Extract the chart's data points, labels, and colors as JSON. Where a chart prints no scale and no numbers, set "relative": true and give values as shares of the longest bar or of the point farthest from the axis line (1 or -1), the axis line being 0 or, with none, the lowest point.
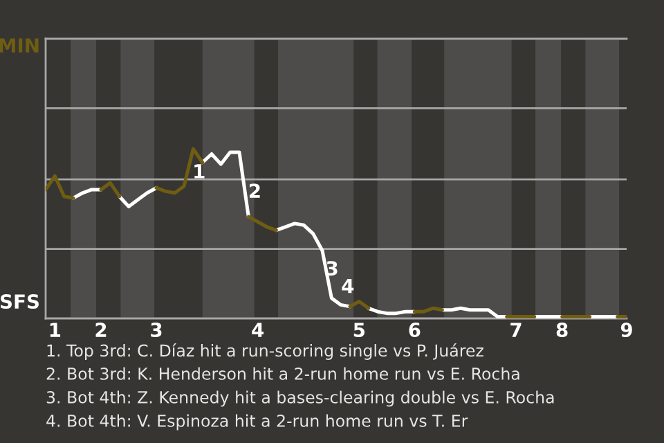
{
  "chart_data": {
    "type": "line",
    "relative": true,
    "tick_labels": "x",
    "legend": false,
    "marker": "none",
    "line_style": "solid",
    "categories": [
      null,
      "1",
      null,
      null,
      null,
      null,
      "2",
      null,
      null,
      null,
      null,
      null,
      "3",
      null,
      null,
      null,
      null,
      null,
      null,
      null,
      null,
      null,
      null,
      "4",
      null,
      null,
      null,
      null,
      null,
      null,
      null,
      null,
      null,
      null,
      "5",
      null,
      null,
      null,
      null,
      null,
      "6",
      null,
      null,
      null,
      null,
      null,
      null,
      null,
      null,
      null,
      null,
      "7",
      null,
      null,
      null,
      null,
      "8",
      null,
      null,
      null,
      null,
      null,
      null,
      "9"
    ],
    "series": [
      {
        "color": "#6f5d12",
        "values": [
          0.76,
          0.84,
          0.72,
          0.71,
          null,
          null,
          0.76,
          0.8,
          0.72,
          null,
          null,
          null,
          0.77,
          0.75,
          0.74,
          0.78,
          1.0,
          0.92,
          null,
          null,
          null,
          null,
          0.6,
          0.57,
          0.54,
          0.52,
          null,
          null,
          null,
          null,
          null,
          null,
          null,
          0.07,
          0.1,
          0.06,
          null,
          null,
          null,
          null,
          0.04,
          0.04,
          0.06,
          0.05,
          null,
          null,
          null,
          null,
          null,
          null,
          0.01,
          0.01,
          0.01,
          0.01,
          null,
          null,
          0.01,
          0.01,
          0.01,
          0.01,
          null,
          null,
          0.01,
          0.01
        ]
      },
      {
        "color": "#ffffff",
        "values": [
          null,
          null,
          null,
          0.71,
          0.74,
          0.76,
          0.76,
          null,
          0.72,
          0.66,
          0.7,
          0.74,
          0.77,
          null,
          null,
          null,
          null,
          0.92,
          0.97,
          0.91,
          0.98,
          0.98,
          0.6,
          null,
          null,
          0.52,
          0.54,
          0.56,
          0.55,
          0.5,
          0.4,
          0.12,
          0.08,
          0.07,
          null,
          0.06,
          0.04,
          0.03,
          0.03,
          0.04,
          0.04,
          null,
          null,
          0.05,
          0.05,
          0.06,
          0.05,
          0.05,
          0.05,
          0.01,
          0.01,
          null,
          null,
          0.01,
          0.01,
          0.01,
          0.01,
          null,
          null,
          0.01,
          0.01,
          0.01,
          0.01,
          null
        ]
      }
    ],
    "ref_lines": [
      {
        "axis": "y",
        "value": 0.41,
        "color": "#a8a8a8"
      },
      {
        "axis": "y",
        "value": 0.82,
        "color": "#a8a8a8"
      },
      {
        "axis": "y",
        "value": 1.24,
        "color": "#a8a8a8"
      }
    ],
    "annotations": [
      "MIN",
      "SFS",
      "1. Top 3rd: C. Díaz hit a run-scoring single vs P. Juárez",
      "2. Bot 3rd: K. Henderson hit a 2-run home run vs E. Rocha",
      "3. Bot 4th: Z. Kennedy hit a bases-clearing double vs E. Rocha",
      "4. Bot 4th: V. Espinoza hit a 2-run home run vs T. Er",
      "1",
      "2",
      "3",
      "4"
    ]
  }
}
